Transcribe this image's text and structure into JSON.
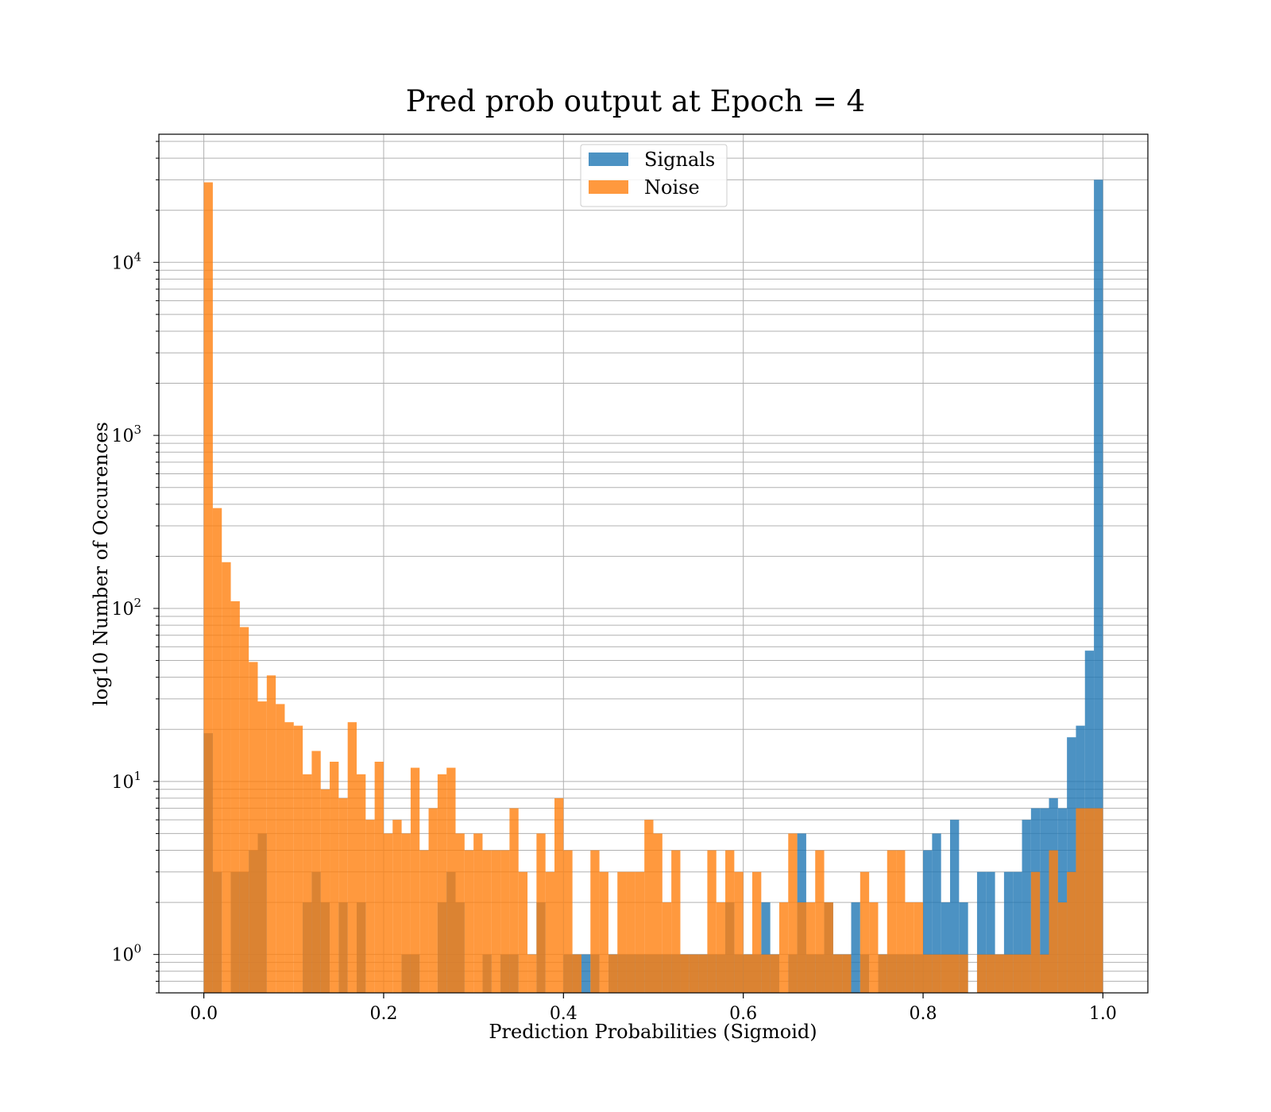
{
  "chart_data": {
    "type": "bar",
    "title": "Pred prob output at Epoch = 4",
    "xlabel": "Prediction Probabilities (Sigmoid)",
    "ylabel": "log10 Number of Occurences",
    "xlim": [
      -0.05,
      1.05
    ],
    "ylim": [
      0.6,
      55000
    ],
    "yscale": "log",
    "grid": true,
    "bin_width": 0.01,
    "x_ticks": [
      "0.0",
      "0.2",
      "0.4",
      "0.6",
      "0.8",
      "1.0"
    ],
    "y_ticks": [
      {
        "base": "10",
        "exp": "0",
        "value": 1
      },
      {
        "base": "10",
        "exp": "1",
        "value": 10
      },
      {
        "base": "10",
        "exp": "2",
        "value": 100
      },
      {
        "base": "10",
        "exp": "3",
        "value": 1000
      },
      {
        "base": "10",
        "exp": "4",
        "value": 10000
      }
    ],
    "legend": {
      "placement": "upper center",
      "entries": [
        "Signals",
        "Noise"
      ]
    },
    "series": [
      {
        "name": "Signals",
        "color": "#1f77b4",
        "values": [
          19,
          3,
          0,
          3,
          3,
          4,
          5,
          0,
          0,
          0,
          0,
          2,
          3,
          2,
          0,
          2,
          0,
          2,
          0,
          0,
          0,
          0,
          1,
          1,
          0,
          0,
          2,
          3,
          2,
          0,
          0,
          1,
          0,
          1,
          1,
          0,
          0,
          2,
          0,
          0,
          1,
          1,
          1,
          1,
          0,
          1,
          1,
          1,
          1,
          1,
          1,
          1,
          1,
          1,
          1,
          1,
          1,
          1,
          2,
          1,
          1,
          1,
          2,
          1,
          0,
          1,
          5,
          1,
          1,
          2,
          1,
          1,
          2,
          1,
          0,
          1,
          1,
          1,
          1,
          1,
          4,
          5,
          2,
          6,
          2,
          0,
          3,
          3,
          1,
          3,
          3,
          6,
          7,
          7,
          8,
          7,
          18,
          21,
          57,
          30000
        ]
      },
      {
        "name": "Noise",
        "color": "#ff7f0e",
        "values": [
          29000,
          380,
          185,
          110,
          78,
          49,
          29,
          41,
          28,
          22,
          21,
          11,
          15,
          9,
          13,
          8,
          22,
          11,
          6,
          13,
          5,
          6,
          5,
          12,
          4,
          7,
          11,
          12,
          5,
          4,
          5,
          4,
          4,
          4,
          7,
          3,
          1,
          5,
          3,
          8,
          4,
          1,
          0,
          4,
          3,
          1,
          3,
          3,
          3,
          6,
          5,
          2,
          4,
          1,
          1,
          1,
          4,
          2,
          4,
          3,
          1,
          3,
          1,
          1,
          2,
          5,
          2,
          2,
          4,
          2,
          1,
          1,
          0,
          3,
          2,
          1,
          4,
          4,
          2,
          2,
          1,
          1,
          1,
          1,
          1,
          0,
          1,
          1,
          1,
          1,
          1,
          1,
          3,
          1,
          4,
          2,
          3,
          7,
          7,
          7
        ]
      }
    ]
  }
}
